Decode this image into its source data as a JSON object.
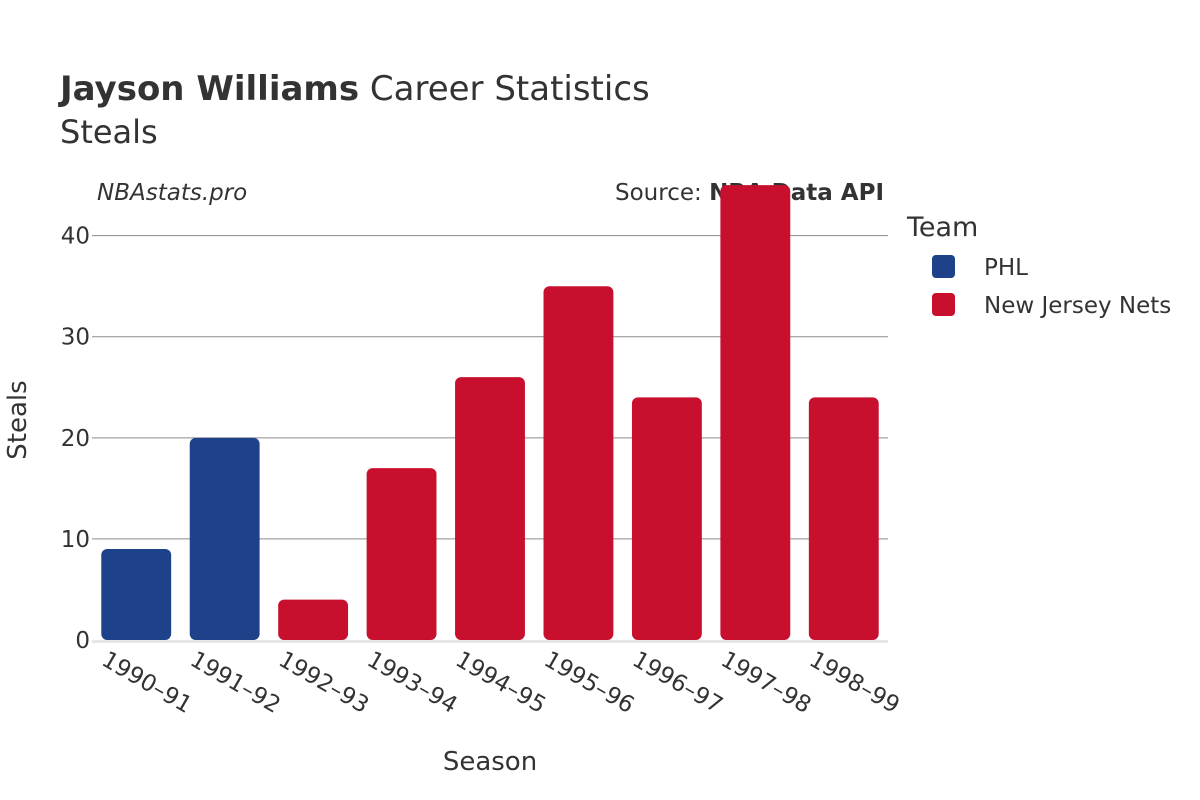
{
  "header": {
    "player_name": "Jayson Williams",
    "title_rest": " Career Statistics",
    "subtitle": "Steals"
  },
  "watermark": "NBAstats.pro",
  "source": {
    "prefix": "Source: ",
    "name": "NBA Data API"
  },
  "legend": {
    "title": "Team",
    "items": [
      {
        "label": "PHL",
        "color": "#1d428a"
      },
      {
        "label": "New Jersey Nets",
        "color": "#c8102e"
      }
    ]
  },
  "chart_data": {
    "type": "bar",
    "title": "Jayson Williams Career Statistics",
    "subtitle": "Steals",
    "xlabel": "Season",
    "ylabel": "Steals",
    "ylim": [
      0,
      46
    ],
    "yticks": [
      0,
      10,
      20,
      30,
      40
    ],
    "grid": true,
    "legend_position": "right",
    "categories": [
      "1990–91",
      "1991–92",
      "1992–93",
      "1993–94",
      "1994–95",
      "1995–96",
      "1996–97",
      "1997–98",
      "1998–99"
    ],
    "values": [
      9,
      20,
      4,
      17,
      26,
      35,
      24,
      45,
      24
    ],
    "teams": [
      "PHL",
      "PHL",
      "New Jersey Nets",
      "New Jersey Nets",
      "New Jersey Nets",
      "New Jersey Nets",
      "New Jersey Nets",
      "New Jersey Nets",
      "New Jersey Nets"
    ]
  }
}
